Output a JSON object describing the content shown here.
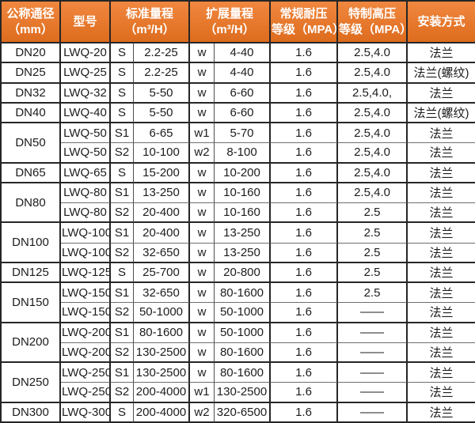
{
  "colors": {
    "header_bg": "#ee7420",
    "header_text": "#ffffff",
    "border": "#262626",
    "thin_border": "#6e6e6e",
    "body_text": "#1c1c1c",
    "body_bg": "#ffffff"
  },
  "table": {
    "header": [
      {
        "name": "nominal-diameter",
        "lines": [
          "公称通径",
          "（mm）"
        ],
        "colspan": 1
      },
      {
        "name": "model",
        "lines": [
          "型号"
        ],
        "colspan": 1
      },
      {
        "name": "standard-range",
        "lines": [
          "标准量程",
          "（m³/H）"
        ],
        "colspan": 2
      },
      {
        "name": "extended-range",
        "lines": [
          "扩展量程",
          "（m³/H）"
        ],
        "colspan": 2
      },
      {
        "name": "normal-pressure",
        "lines": [
          "常规耐压",
          "等级（MPA）"
        ],
        "colspan": 1
      },
      {
        "name": "high-pressure",
        "lines": [
          "特制高压",
          "等级（MPA）"
        ],
        "colspan": 1
      },
      {
        "name": "installation",
        "lines": [
          "安装方式"
        ],
        "colspan": 1
      }
    ],
    "rows": [
      {
        "dn": "DN20",
        "dn_rowspan": 1,
        "model": "LWQ-20",
        "s": "S",
        "std": "2.2-25",
        "w": "w",
        "ext": "4-40",
        "normal_mpa": "1.6",
        "high_mpa": "2.5,4.0",
        "install": "法兰"
      },
      {
        "dn": "DN25",
        "dn_rowspan": 1,
        "model": "LWQ-25",
        "s": "S",
        "std": "2.2-25",
        "w": "w",
        "ext": "4-40",
        "normal_mpa": "1.6",
        "high_mpa": "2.5,4.0",
        "install": "法兰(螺纹)"
      },
      {
        "dn": "DN32",
        "dn_rowspan": 1,
        "model": "LWQ-32",
        "s": "S",
        "std": "5-50",
        "w": "w",
        "ext": "6-60",
        "normal_mpa": "1.6",
        "high_mpa": "2.5,4.0,",
        "install": "法兰"
      },
      {
        "dn": "DN40",
        "dn_rowspan": 1,
        "model": "LWQ-40",
        "s": "S",
        "std": "5-50",
        "w": "w",
        "ext": "6-60",
        "normal_mpa": "1.6",
        "high_mpa": "2.5,4.0",
        "install": "法兰(螺纹)"
      },
      {
        "dn": "DN50",
        "dn_rowspan": 2,
        "model": "LWQ-50",
        "s": "S1",
        "std": "6-65",
        "w": "w1",
        "ext": "5-70",
        "normal_mpa": "1.6",
        "high_mpa": "2.5,4.0",
        "install": "法兰"
      },
      {
        "thin_top": true,
        "model": "LWQ-50",
        "s": "S2",
        "std": "10-100",
        "w": "w2",
        "ext": "8-100",
        "normal_mpa": "1.6",
        "high_mpa": "2.5,4.0",
        "install": "法兰"
      },
      {
        "dn": "DN65",
        "dn_rowspan": 1,
        "model": "LWQ-65",
        "s": "S",
        "std": "15-200",
        "w": "w",
        "ext": "10-200",
        "normal_mpa": "1.6",
        "high_mpa": "2.5,4.0",
        "install": "法兰"
      },
      {
        "dn": "DN80",
        "dn_rowspan": 2,
        "model": "LWQ-80",
        "s": "S1",
        "std": "13-250",
        "w": "w",
        "ext": "10-160",
        "normal_mpa": "1.6",
        "high_mpa": "2.5,4.0",
        "install": "法兰"
      },
      {
        "thin_top": true,
        "model": "LWQ-80",
        "s": "S2",
        "std": "20-400",
        "w": "w",
        "ext": "10-160",
        "normal_mpa": "1.6",
        "high_mpa": "2.5",
        "install": "法兰"
      },
      {
        "dn": "DN100",
        "dn_rowspan": 2,
        "model": "LWQ-100",
        "s": "S1",
        "std": "20-400",
        "w": "w",
        "ext": "13-250",
        "normal_mpa": "1.6",
        "high_mpa": "2.5",
        "install": "法兰"
      },
      {
        "thin_top": true,
        "model": "LWQ-100",
        "s": "S2",
        "std": "32-650",
        "w": "w",
        "ext": "13-250",
        "normal_mpa": "1.6",
        "high_mpa": "2.5",
        "install": "法兰"
      },
      {
        "dn": "DN125",
        "dn_rowspan": 1,
        "model": "LWQ-125",
        "s": "S",
        "std": "25-700",
        "w": "w",
        "ext": "20-800",
        "normal_mpa": "1.6",
        "high_mpa": "2.5",
        "install": "法兰"
      },
      {
        "dn": "DN150",
        "dn_rowspan": 2,
        "model": "LWQ-150",
        "s": "S1",
        "std": "32-650",
        "w": "w",
        "ext": "80-1600",
        "normal_mpa": "1.6",
        "high_mpa": "2.5",
        "install": "法兰"
      },
      {
        "thin_top": true,
        "model": "LWQ-150",
        "s": "S2",
        "std": "50-1000",
        "w": "w",
        "ext": "50-1000",
        "normal_mpa": "1.6",
        "high_mpa": "——",
        "install": "法兰"
      },
      {
        "dn": "DN200",
        "dn_rowspan": 2,
        "model": "LWQ-200",
        "s": "S1",
        "std": "80-1600",
        "w": "w",
        "ext": "50-1000",
        "normal_mpa": "1.6",
        "high_mpa": "——",
        "install": "法兰"
      },
      {
        "thin_top": true,
        "model": "LWQ-200",
        "s": "S2",
        "std": "130-2500",
        "w": "w",
        "ext": "80-1600",
        "normal_mpa": "1.6",
        "high_mpa": "——",
        "install": "法兰"
      },
      {
        "dn": "DN250",
        "dn_rowspan": 2,
        "model": "LWQ-250",
        "s": "S1",
        "std": "130-2500",
        "w": "w",
        "ext": "80-1600",
        "normal_mpa": "1.6",
        "high_mpa": "——",
        "install": "法兰"
      },
      {
        "thin_top": true,
        "model": "LWQ-250",
        "s": "S2",
        "std": "200-4000",
        "w": "w1",
        "ext": "130-2500",
        "normal_mpa": "1.6",
        "high_mpa": "——",
        "install": "法兰"
      },
      {
        "dn": "DN300",
        "dn_rowspan": 1,
        "model": "LWQ-300",
        "s": "S",
        "std": "200-4000",
        "w": "w2",
        "ext": "320-6500",
        "normal_mpa": "1.6",
        "high_mpa": "——",
        "install": "法兰"
      }
    ]
  }
}
